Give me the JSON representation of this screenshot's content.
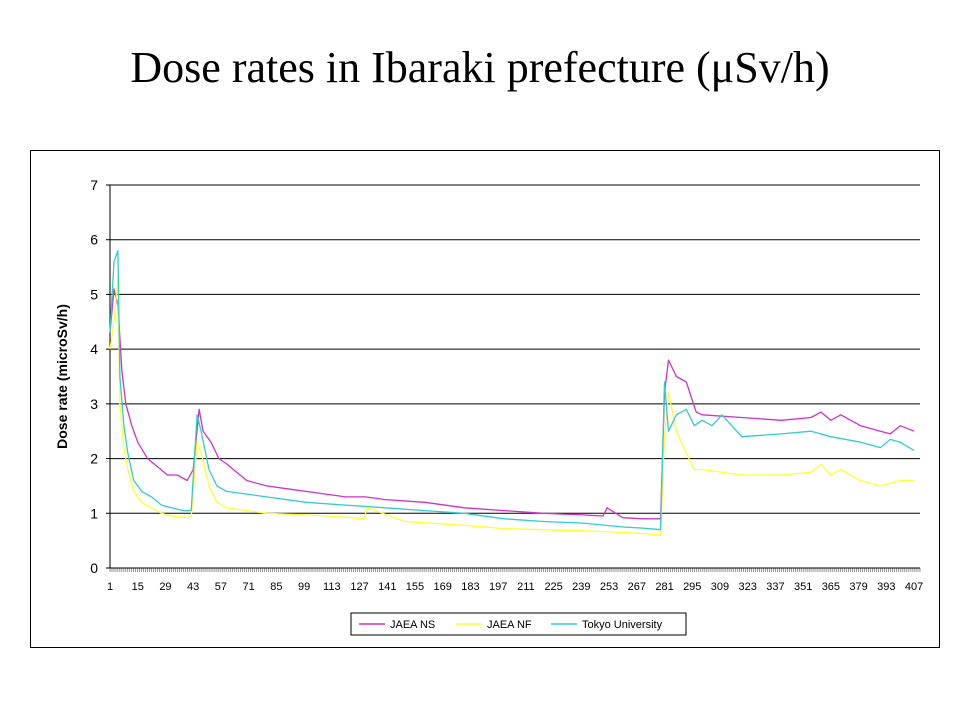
{
  "title": "Dose rates in Ibaraki prefecture (μSv/h)",
  "chart_data": {
    "type": "line",
    "title": "",
    "xlabel": "",
    "ylabel": "Dose rate (microSv/h)",
    "xlim": [
      1,
      410
    ],
    "ylim": [
      0,
      7
    ],
    "y_ticks": [
      0,
      1,
      2,
      3,
      4,
      5,
      6,
      7
    ],
    "x_tick_labels": [
      1,
      15,
      29,
      43,
      57,
      71,
      85,
      99,
      113,
      127,
      141,
      155,
      169,
      183,
      197,
      211,
      225,
      239,
      253,
      267,
      281,
      295,
      309,
      323,
      337,
      351,
      365,
      379,
      393,
      407
    ],
    "grid": "horizontal",
    "legend_position": "bottom",
    "series": [
      {
        "name": "JAEA NS",
        "color": "#cc33cc",
        "x": [
          1,
          3,
          5,
          7,
          9,
          12,
          15,
          20,
          25,
          30,
          35,
          40,
          43,
          46,
          48,
          52,
          56,
          60,
          65,
          70,
          80,
          90,
          100,
          110,
          120,
          130,
          140,
          160,
          180,
          200,
          220,
          240,
          250,
          252,
          260,
          270,
          279,
          281,
          283,
          287,
          292,
          297,
          300,
          320,
          340,
          355,
          360,
          365,
          370,
          380,
          390,
          395,
          400,
          407
        ],
        "y": [
          4.3,
          5.1,
          4.8,
          3.6,
          3.0,
          2.6,
          2.3,
          2.0,
          1.85,
          1.7,
          1.7,
          1.6,
          1.8,
          2.9,
          2.5,
          2.3,
          2.0,
          1.9,
          1.75,
          1.6,
          1.5,
          1.45,
          1.4,
          1.35,
          1.3,
          1.3,
          1.25,
          1.2,
          1.1,
          1.05,
          1.0,
          0.97,
          0.95,
          1.1,
          0.92,
          0.9,
          0.9,
          3.2,
          3.8,
          3.5,
          3.4,
          2.85,
          2.8,
          2.75,
          2.7,
          2.75,
          2.85,
          2.7,
          2.8,
          2.6,
          2.5,
          2.45,
          2.6,
          2.5
        ]
      },
      {
        "name": "JAEA NF",
        "color": "#ffff33",
        "x": [
          1,
          3,
          5,
          6,
          8,
          10,
          13,
          17,
          22,
          27,
          32,
          38,
          42,
          45,
          47,
          51,
          55,
          60,
          70,
          80,
          100,
          120,
          129,
          131,
          150,
          180,
          200,
          220,
          240,
          260,
          270,
          279,
          281,
          283,
          287,
          292,
          296,
          300,
          320,
          340,
          355,
          360,
          365,
          370,
          380,
          390,
          395,
          400,
          407
        ],
        "y": [
          4.0,
          4.5,
          5.3,
          3.0,
          2.2,
          1.8,
          1.4,
          1.2,
          1.1,
          1.0,
          0.95,
          0.93,
          0.92,
          2.3,
          2.1,
          1.5,
          1.2,
          1.1,
          1.05,
          1.0,
          0.97,
          0.93,
          0.9,
          1.1,
          0.85,
          0.78,
          0.72,
          0.7,
          0.68,
          0.65,
          0.63,
          0.6,
          2.4,
          3.2,
          2.5,
          2.1,
          1.8,
          1.8,
          1.7,
          1.7,
          1.75,
          1.9,
          1.7,
          1.8,
          1.6,
          1.5,
          1.55,
          1.6,
          1.6
        ]
      },
      {
        "name": "Tokyo University",
        "color": "#33cccc",
        "x": [
          1,
          3,
          5,
          6,
          8,
          10,
          13,
          17,
          22,
          27,
          32,
          38,
          42,
          45,
          47,
          51,
          55,
          60,
          70,
          80,
          100,
          120,
          140,
          160,
          180,
          200,
          220,
          240,
          260,
          270,
          279,
          281,
          283,
          287,
          292,
          296,
          300,
          305,
          310,
          320,
          340,
          355,
          365,
          380,
          390,
          395,
          400,
          407
        ],
        "y": [
          4.3,
          5.6,
          5.8,
          3.5,
          2.6,
          2.1,
          1.6,
          1.4,
          1.3,
          1.15,
          1.1,
          1.05,
          1.05,
          2.8,
          2.5,
          1.8,
          1.5,
          1.4,
          1.35,
          1.3,
          1.2,
          1.15,
          1.1,
          1.05,
          1.0,
          0.9,
          0.85,
          0.82,
          0.75,
          0.73,
          0.7,
          3.4,
          2.5,
          2.8,
          2.9,
          2.6,
          2.7,
          2.6,
          2.8,
          2.4,
          2.45,
          2.5,
          2.4,
          2.3,
          2.2,
          2.35,
          2.3,
          2.15
        ]
      }
    ]
  }
}
